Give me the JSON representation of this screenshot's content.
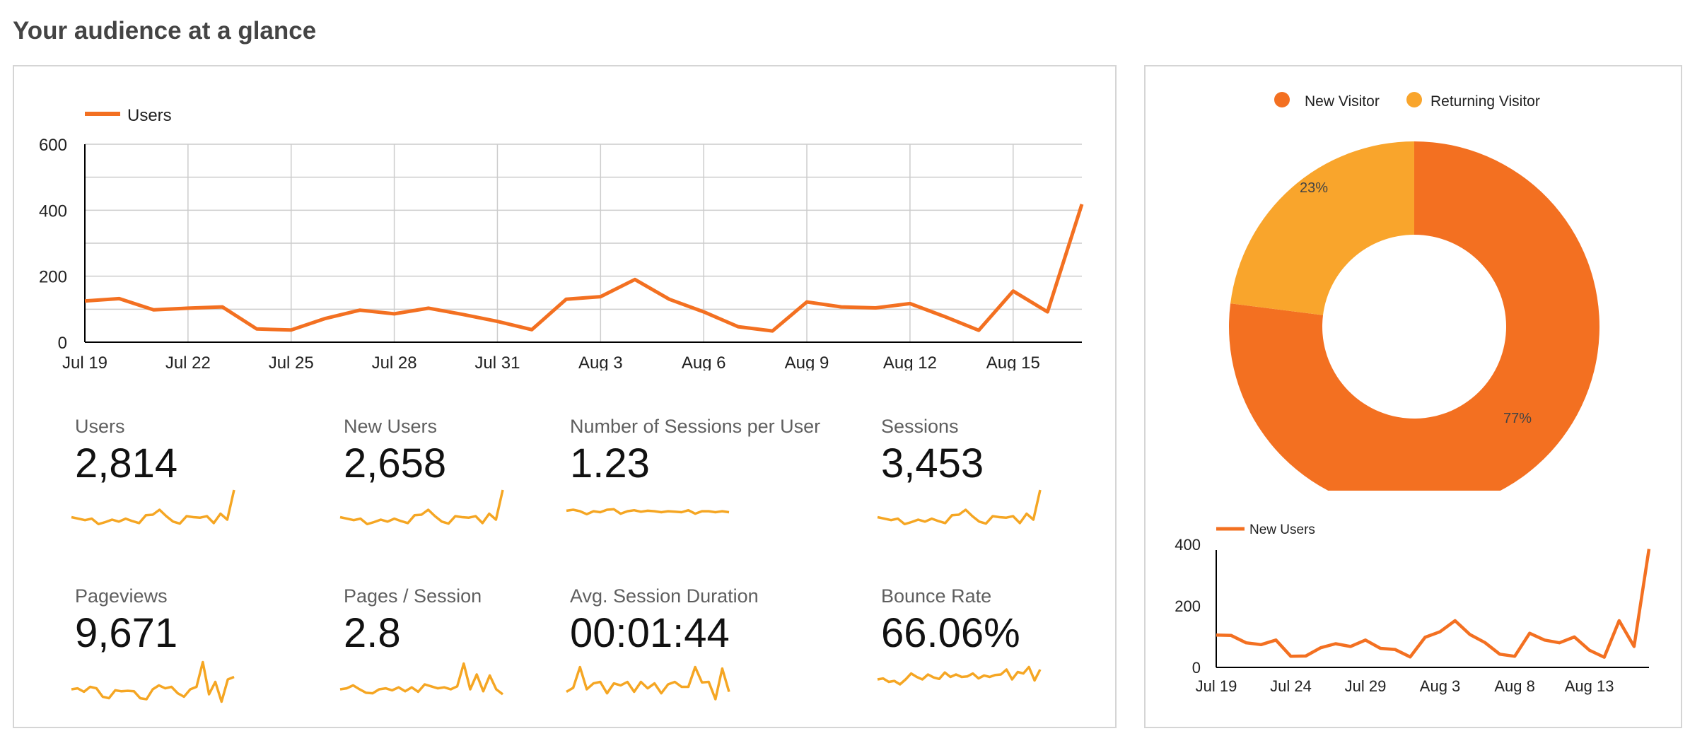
{
  "page": {
    "title": "Your audience at a glance"
  },
  "colors": {
    "primary": "#f37021",
    "accent": "#f5a623",
    "grid": "#cccccc",
    "axis": "#000000",
    "donut_returning": "#f9a52c"
  },
  "users_chart": {
    "legend": "Users",
    "y_ticks": [
      "600",
      "400",
      "200",
      "0"
    ],
    "x_ticks": [
      "Jul 19",
      "Jul 22",
      "Jul 25",
      "Jul 28",
      "Jul 31",
      "Aug 3",
      "Aug 6",
      "Aug 9",
      "Aug 12",
      "Aug 15"
    ]
  },
  "metrics": [
    {
      "label": "Users",
      "value": "2,814"
    },
    {
      "label": "New Users",
      "value": "2,658"
    },
    {
      "label": "Number of Sessions per User",
      "value": "1.23"
    },
    {
      "label": "Sessions",
      "value": "3,453"
    },
    {
      "label": "Pageviews",
      "value": "9,671"
    },
    {
      "label": "Pages / Session",
      "value": "2.8"
    },
    {
      "label": "Avg. Session Duration",
      "value": "00:01:44"
    },
    {
      "label": "Bounce Rate",
      "value": "66.06%"
    }
  ],
  "donut": {
    "legend": [
      "New Visitor",
      "Returning Visitor"
    ],
    "labels": [
      "77%",
      "23%"
    ]
  },
  "new_users_chart": {
    "legend": "New Users",
    "y_ticks": [
      "400",
      "200",
      "0"
    ],
    "x_ticks": [
      "Jul 19",
      "Jul 24",
      "Jul 29",
      "Aug 3",
      "Aug 8",
      "Aug 13"
    ]
  },
  "chart_data": [
    {
      "type": "line",
      "title": "",
      "xlabel": "",
      "ylabel": "",
      "ylim": [
        0,
        600
      ],
      "grid": true,
      "legend": "top-left",
      "x": [
        "Jul 19",
        "Jul 20",
        "Jul 21",
        "Jul 22",
        "Jul 23",
        "Jul 24",
        "Jul 25",
        "Jul 26",
        "Jul 27",
        "Jul 28",
        "Jul 29",
        "Jul 30",
        "Jul 31",
        "Aug 1",
        "Aug 2",
        "Aug 3",
        "Aug 4",
        "Aug 5",
        "Aug 6",
        "Aug 7",
        "Aug 8",
        "Aug 9",
        "Aug 10",
        "Aug 11",
        "Aug 12",
        "Aug 13",
        "Aug 14",
        "Aug 15",
        "Aug 16",
        "Aug 17"
      ],
      "series": [
        {
          "name": "Users",
          "values": [
            125,
            132,
            98,
            103,
            107,
            40,
            37,
            72,
            97,
            86,
            103,
            84,
            63,
            38,
            130,
            138,
            190,
            130,
            92,
            47,
            34,
            122,
            107,
            104,
            117,
            78,
            36,
            155,
            92,
            418
          ]
        }
      ]
    },
    {
      "type": "pie",
      "legend": "top",
      "categories": [
        "New Visitor",
        "Returning Visitor"
      ],
      "values": [
        77,
        23
      ]
    },
    {
      "type": "line",
      "ylim": [
        0,
        400
      ],
      "legend": "top-left",
      "x": [
        "Jul 19",
        "Jul 20",
        "Jul 21",
        "Jul 22",
        "Jul 23",
        "Jul 24",
        "Jul 25",
        "Jul 26",
        "Jul 27",
        "Jul 28",
        "Jul 29",
        "Jul 30",
        "Jul 31",
        "Aug 1",
        "Aug 2",
        "Aug 3",
        "Aug 4",
        "Aug 5",
        "Aug 6",
        "Aug 7",
        "Aug 8",
        "Aug 9",
        "Aug 10",
        "Aug 11",
        "Aug 12",
        "Aug 13",
        "Aug 14",
        "Aug 15",
        "Aug 16",
        "Aug 17"
      ],
      "series": [
        {
          "name": "New Users",
          "values": [
            105,
            104,
            80,
            74,
            89,
            36,
            37,
            64,
            77,
            68,
            89,
            62,
            58,
            34,
            98,
            116,
            152,
            107,
            81,
            43,
            36,
            111,
            89,
            80,
            99,
            56,
            33,
            152,
            68,
            385
          ]
        }
      ]
    }
  ],
  "sparklines": [
    [
      45,
      42,
      39,
      42,
      31,
      35,
      40,
      36,
      42,
      37,
      33,
      49,
      50,
      60,
      47,
      36,
      32,
      47,
      45,
      44,
      47,
      33,
      52,
      40,
      100
    ],
    [
      45,
      42,
      39,
      42,
      31,
      35,
      40,
      36,
      42,
      37,
      33,
      49,
      50,
      60,
      47,
      36,
      32,
      47,
      45,
      44,
      47,
      33,
      52,
      40,
      100
    ],
    [
      58,
      60,
      57,
      51,
      57,
      55,
      60,
      61,
      52,
      57,
      59,
      56,
      58,
      57,
      55,
      57,
      56,
      55,
      59,
      52,
      57,
      57,
      55,
      57,
      55
    ],
    [
      45,
      42,
      39,
      42,
      31,
      35,
      40,
      36,
      42,
      37,
      33,
      49,
      50,
      60,
      47,
      36,
      32,
      47,
      45,
      44,
      47,
      33,
      52,
      40,
      100
    ],
    [
      40,
      42,
      35,
      45,
      42,
      25,
      22,
      38,
      36,
      37,
      36,
      22,
      20,
      40,
      48,
      42,
      45,
      32,
      25,
      40,
      45,
      95,
      30,
      55,
      15,
      60,
      65
    ],
    [
      40,
      42,
      48,
      40,
      33,
      32,
      40,
      42,
      38,
      44,
      36,
      44,
      35,
      50,
      46,
      42,
      44,
      40,
      46,
      92,
      40,
      70,
      36,
      68,
      40,
      30
    ],
    [
      35,
      43,
      85,
      40,
      52,
      55,
      32,
      52,
      48,
      55,
      35,
      55,
      42,
      52,
      32,
      50,
      55,
      45,
      45,
      85,
      54,
      55,
      20,
      82,
      35
    ],
    [
      60,
      62,
      55,
      57,
      50,
      60,
      72,
      65,
      60,
      70,
      64,
      61,
      74,
      65,
      70,
      65,
      66,
      72,
      62,
      68,
      65,
      69,
      70,
      80,
      60,
      75,
      72,
      85,
      58,
      80
    ]
  ]
}
